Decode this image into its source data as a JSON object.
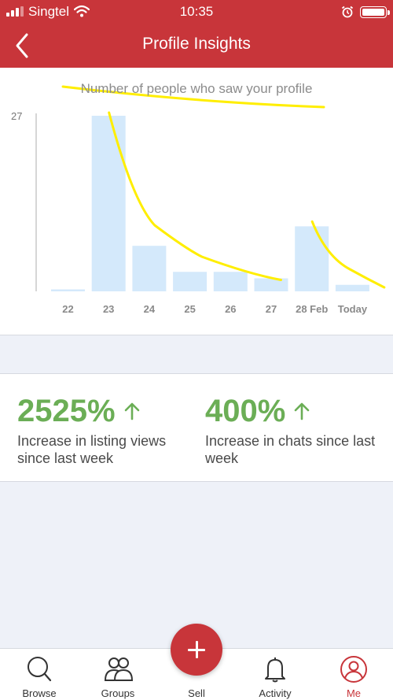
{
  "status": {
    "carrier": "Singtel",
    "time": "10:35"
  },
  "nav": {
    "title": "Profile Insights",
    "back_icon": "chevron-left-icon"
  },
  "chart_data": {
    "type": "bar",
    "title": "Number of people who saw your profile",
    "categories": [
      "22",
      "23",
      "24",
      "25",
      "26",
      "27",
      "28 Feb",
      "Today"
    ],
    "values": [
      0.3,
      27,
      7,
      3,
      3,
      2,
      10,
      1
    ],
    "ylim": [
      0,
      27
    ],
    "y_ticks": [
      "27"
    ],
    "bar_color": "#d4e9fb",
    "annotation_color": "#ffee00"
  },
  "stats": [
    {
      "value": "2525%",
      "label": "Increase in listing views since last week"
    },
    {
      "value": "400%",
      "label": "Increase in chats since last week"
    }
  ],
  "tabs": [
    {
      "label": "Browse",
      "icon": "search-icon"
    },
    {
      "label": "Groups",
      "icon": "people-icon"
    },
    {
      "label": "Sell",
      "icon": "plus-icon"
    },
    {
      "label": "Activity",
      "icon": "bell-icon"
    },
    {
      "label": "Me",
      "icon": "profile-icon",
      "active": true
    }
  ],
  "colors": {
    "brand": "#c8353a",
    "positive": "#6bae56"
  }
}
